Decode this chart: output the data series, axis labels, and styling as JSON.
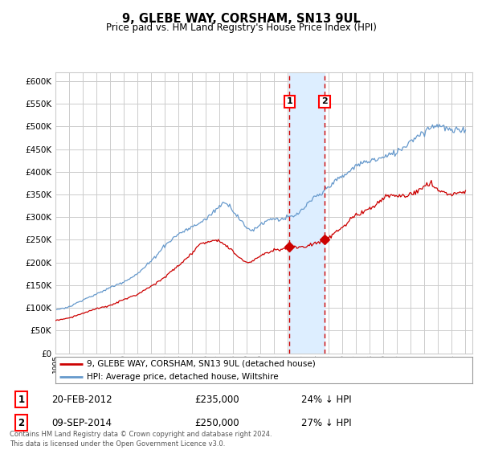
{
  "title": "9, GLEBE WAY, CORSHAM, SN13 9UL",
  "subtitle": "Price paid vs. HM Land Registry's House Price Index (HPI)",
  "xlim_start": 1995.0,
  "xlim_end": 2025.5,
  "ylim_min": 0,
  "ylim_max": 620000,
  "yticks": [
    0,
    50000,
    100000,
    150000,
    200000,
    250000,
    300000,
    350000,
    400000,
    450000,
    500000,
    550000,
    600000
  ],
  "purchase1_date": 2012.13,
  "purchase1_price": 235000,
  "purchase2_date": 2014.69,
  "purchase2_price": 250000,
  "purchase1_label": "20-FEB-2012",
  "purchase1_amount": "£235,000",
  "purchase1_hpi": "24% ↓ HPI",
  "purchase2_label": "09-SEP-2014",
  "purchase2_amount": "£250,000",
  "purchase2_hpi": "27% ↓ HPI",
  "line1_label": "9, GLEBE WAY, CORSHAM, SN13 9UL (detached house)",
  "line2_label": "HPI: Average price, detached house, Wiltshire",
  "line1_color": "#cc0000",
  "line2_color": "#6699cc",
  "footnote": "Contains HM Land Registry data © Crown copyright and database right 2024.\nThis data is licensed under the Open Government Licence v3.0.",
  "background_color": "#ffffff",
  "grid_color": "#cccccc",
  "shade_color": "#ddeeff",
  "hpi_keypoints": [
    [
      1995.0,
      96000
    ],
    [
      1996.0,
      102000
    ],
    [
      1997.0,
      118000
    ],
    [
      1998.0,
      130000
    ],
    [
      1999.0,
      145000
    ],
    [
      2000.0,
      158000
    ],
    [
      2001.0,
      175000
    ],
    [
      2002.0,
      203000
    ],
    [
      2003.0,
      238000
    ],
    [
      2004.0,
      263000
    ],
    [
      2005.0,
      278000
    ],
    [
      2006.0,
      295000
    ],
    [
      2007.0,
      325000
    ],
    [
      2007.5,
      335000
    ],
    [
      2008.0,
      315000
    ],
    [
      2008.5,
      295000
    ],
    [
      2009.0,
      275000
    ],
    [
      2009.5,
      272000
    ],
    [
      2010.0,
      285000
    ],
    [
      2010.5,
      293000
    ],
    [
      2011.0,
      298000
    ],
    [
      2011.5,
      295000
    ],
    [
      2012.0,
      300000
    ],
    [
      2012.5,
      302000
    ],
    [
      2013.0,
      315000
    ],
    [
      2013.5,
      330000
    ],
    [
      2014.0,
      345000
    ],
    [
      2014.5,
      352000
    ],
    [
      2015.0,
      370000
    ],
    [
      2015.5,
      380000
    ],
    [
      2016.0,
      390000
    ],
    [
      2016.5,
      400000
    ],
    [
      2017.0,
      415000
    ],
    [
      2017.5,
      420000
    ],
    [
      2018.0,
      425000
    ],
    [
      2018.5,
      428000
    ],
    [
      2019.0,
      432000
    ],
    [
      2019.5,
      438000
    ],
    [
      2020.0,
      445000
    ],
    [
      2020.5,
      455000
    ],
    [
      2021.0,
      470000
    ],
    [
      2021.5,
      480000
    ],
    [
      2022.0,
      490000
    ],
    [
      2022.5,
      500000
    ],
    [
      2023.0,
      505000
    ],
    [
      2023.5,
      498000
    ],
    [
      2024.0,
      490000
    ],
    [
      2024.5,
      492000
    ],
    [
      2025.0,
      495000
    ]
  ],
  "red_keypoints": [
    [
      1995.0,
      72000
    ],
    [
      1996.0,
      78000
    ],
    [
      1997.0,
      88000
    ],
    [
      1998.0,
      98000
    ],
    [
      1999.0,
      105000
    ],
    [
      2000.0,
      118000
    ],
    [
      2001.0,
      130000
    ],
    [
      2002.0,
      148000
    ],
    [
      2003.0,
      168000
    ],
    [
      2004.0,
      193000
    ],
    [
      2005.0,
      220000
    ],
    [
      2005.5,
      240000
    ],
    [
      2006.0,
      245000
    ],
    [
      2006.5,
      250000
    ],
    [
      2007.0,
      248000
    ],
    [
      2007.5,
      238000
    ],
    [
      2008.0,
      225000
    ],
    [
      2008.5,
      210000
    ],
    [
      2009.0,
      200000
    ],
    [
      2009.5,
      205000
    ],
    [
      2010.0,
      215000
    ],
    [
      2010.5,
      222000
    ],
    [
      2011.0,
      228000
    ],
    [
      2011.5,
      230000
    ],
    [
      2012.13,
      235000
    ],
    [
      2012.5,
      232000
    ],
    [
      2013.0,
      234000
    ],
    [
      2013.5,
      238000
    ],
    [
      2014.0,
      242000
    ],
    [
      2014.69,
      250000
    ],
    [
      2015.0,
      255000
    ],
    [
      2015.5,
      268000
    ],
    [
      2016.0,
      278000
    ],
    [
      2016.5,
      292000
    ],
    [
      2017.0,
      305000
    ],
    [
      2017.5,
      312000
    ],
    [
      2018.0,
      320000
    ],
    [
      2018.5,
      330000
    ],
    [
      2019.0,
      340000
    ],
    [
      2019.5,
      348000
    ],
    [
      2020.0,
      350000
    ],
    [
      2020.5,
      345000
    ],
    [
      2021.0,
      350000
    ],
    [
      2021.5,
      360000
    ],
    [
      2022.0,
      368000
    ],
    [
      2022.5,
      372000
    ],
    [
      2023.0,
      360000
    ],
    [
      2023.5,
      355000
    ],
    [
      2024.0,
      350000
    ],
    [
      2024.5,
      355000
    ],
    [
      2025.0,
      357000
    ]
  ]
}
